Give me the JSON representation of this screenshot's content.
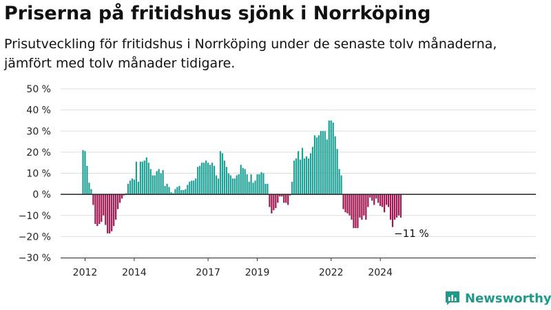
{
  "header": {
    "title": "Priserna på fritidshus sjönk i Norrköping",
    "subtitle": "Prisutveckling för fritidshus i Norrköping under de senaste tolv månaderna, jämfört med tolv månader tidigare."
  },
  "brand": {
    "name": "Newsworthy",
    "icon": "newsworthy-logo-icon",
    "color": "#1f9a8a"
  },
  "colors": {
    "positive": "#1aa095",
    "negative": "#a01550",
    "grid": "#dddddd",
    "zero_line": "#222222"
  },
  "chart_data": {
    "type": "bar",
    "title": "Priserna på fritidshus sjönk i Norrköping",
    "xlabel": "",
    "ylabel": "",
    "unit": "%",
    "ylim": [
      -30,
      50
    ],
    "yticks": [
      -30,
      -20,
      -10,
      0,
      10,
      20,
      30,
      40,
      50
    ],
    "ytick_labels": [
      "−30 %",
      "−20 %",
      "−10 %",
      "0 %",
      "10 %",
      "20 %",
      "30 %",
      "40 %",
      "50 %"
    ],
    "xticks": [
      {
        "label": "2012",
        "month_index": 1
      },
      {
        "label": "2014",
        "month_index": 25
      },
      {
        "label": "2017",
        "month_index": 61
      },
      {
        "label": "2019",
        "month_index": 85
      },
      {
        "label": "2022",
        "month_index": 121
      },
      {
        "label": "2024",
        "month_index": 145
      }
    ],
    "grid": true,
    "start": "2012-01",
    "values": [
      21,
      20.5,
      13.5,
      5.5,
      2.5,
      -5,
      -14,
      -15,
      -14,
      -13,
      -10,
      -14.5,
      -18.5,
      -18.5,
      -17.5,
      -15,
      -12,
      -7,
      -4,
      -2,
      -0.5,
      0.5,
      5,
      6.5,
      7.5,
      7,
      15.5,
      6,
      15.5,
      15.5,
      16,
      17.5,
      15,
      12,
      9,
      9,
      11,
      12,
      10,
      11.5,
      4,
      5,
      3.5,
      1,
      0.5,
      2.5,
      3.5,
      4,
      2,
      2,
      2.5,
      4.5,
      6,
      6.5,
      6.5,
      7.5,
      13,
      13.5,
      15,
      15,
      16,
      15,
      14,
      15,
      13.5,
      9,
      7.5,
      20.5,
      19.5,
      16,
      13,
      10,
      9,
      7.5,
      7.5,
      9,
      9.5,
      14,
      12.5,
      12,
      9.5,
      6,
      9.5,
      5.5,
      6.5,
      9.5,
      9.5,
      10.5,
      10,
      5,
      5,
      -6,
      -9,
      -7.5,
      -6.5,
      -4,
      -1,
      -1,
      -4,
      -4,
      -5,
      -0.5,
      6,
      16,
      17,
      20.5,
      16.5,
      22,
      17,
      18,
      17,
      19.5,
      22.5,
      28,
      27,
      28,
      30,
      30,
      30,
      26,
      35,
      35,
      34,
      27.5,
      21.5,
      12,
      9,
      -7,
      -8.5,
      -9,
      -10,
      -12,
      -16,
      -16,
      -16,
      -11,
      -12,
      -10,
      -12,
      -6,
      -1.5,
      -3,
      -5,
      -2,
      -4,
      -5.5,
      -6,
      -8.5,
      -5,
      -6,
      -12,
      -15.5,
      -12,
      -11,
      -10,
      -11
    ],
    "annotation": {
      "label": "−11 %",
      "value": -11,
      "month_index": 160
    }
  }
}
